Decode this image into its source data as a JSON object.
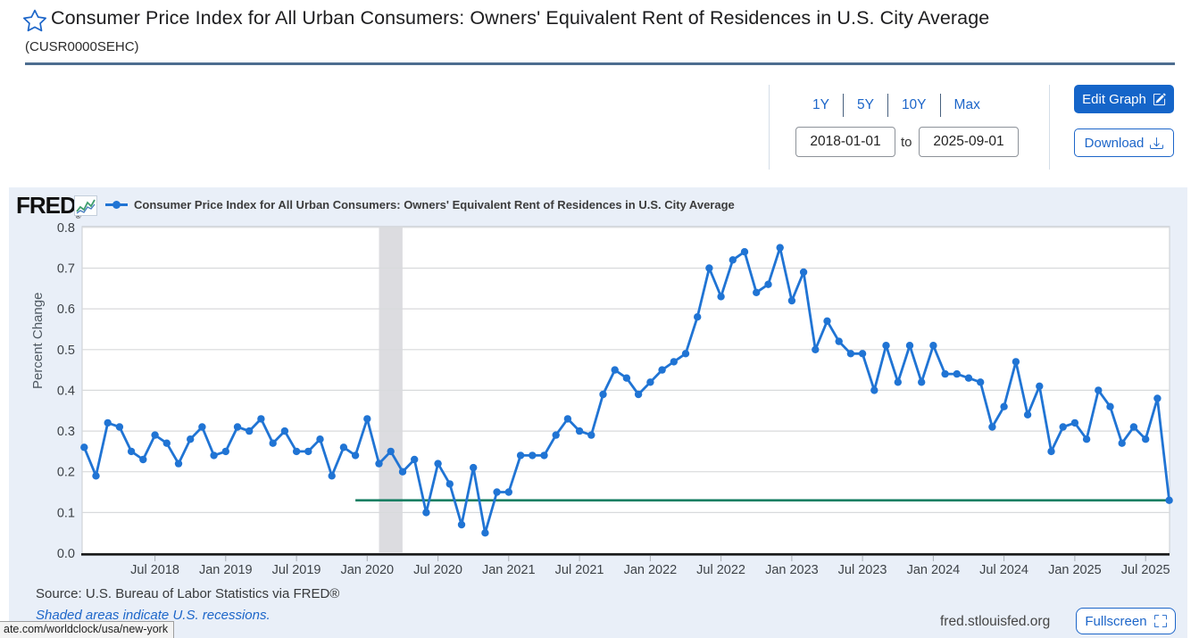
{
  "header": {
    "title": "Consumer Price Index for All Urban Consumers: Owners' Equivalent Rent of Residences in U.S. City Average",
    "series_id": "(CUSR0000SEHC)"
  },
  "controls": {
    "ranges": [
      "1Y",
      "5Y",
      "10Y",
      "Max"
    ],
    "date_start": "2018-01-01",
    "to_label": "to",
    "date_end": "2025-09-01",
    "edit_graph_label": "Edit Graph",
    "download_label": "Download"
  },
  "chart": {
    "logo_text": "FRED",
    "legend_label": "Consumer Price Index for All Urban Consumers: Owners' Equivalent Rent of Residences in U.S. City Average",
    "source_line": "Source: U.S. Bureau of Labor Statistics via FRED®",
    "recession_note": "Shaded areas indicate U.S. recessions.",
    "site_label": "fred.stlouisfed.org",
    "fullscreen_label": "Fullscreen"
  },
  "status_tooltip": "ate.com/worldclock/usa/new-york",
  "colors": {
    "accent_blue": "#1d66c9",
    "line_blue": "#2074d4",
    "green_line": "#177f63",
    "recession_band": "#dcdce0",
    "chart_bg": "#e9eff8",
    "divider": "#4d6d90"
  },
  "chart_data": {
    "type": "line",
    "title": "Consumer Price Index for All Urban Consumers: Owners' Equivalent Rent of Residences in U.S. City Average",
    "xlabel": "",
    "ylabel": "Percent Change",
    "ylim": [
      0.0,
      0.8
    ],
    "yticks": [
      "0.0",
      "0.1",
      "0.2",
      "0.3",
      "0.4",
      "0.5",
      "0.6",
      "0.7",
      "0.8"
    ],
    "x_tick_labels": [
      "Jul 2018",
      "Jan 2019",
      "Jul 2019",
      "Jan 2020",
      "Jul 2020",
      "Jan 2021",
      "Jul 2021",
      "Jan 2022",
      "Jul 2022",
      "Jan 2023",
      "Jul 2023",
      "Jan 2024",
      "Jul 2024",
      "Jan 2025",
      "Jul 2025"
    ],
    "frequency": "monthly",
    "start_month": "2018-01",
    "end_month": "2025-09",
    "values": [
      0.26,
      0.19,
      0.32,
      0.31,
      0.25,
      0.23,
      0.29,
      0.27,
      0.22,
      0.28,
      0.31,
      0.24,
      0.25,
      0.31,
      0.3,
      0.33,
      0.27,
      0.3,
      0.25,
      0.25,
      0.28,
      0.19,
      0.26,
      0.24,
      0.33,
      0.22,
      0.25,
      0.2,
      0.23,
      0.1,
      0.22,
      0.17,
      0.07,
      0.21,
      0.05,
      0.15,
      0.15,
      0.24,
      0.24,
      0.24,
      0.29,
      0.33,
      0.3,
      0.29,
      0.39,
      0.45,
      0.43,
      0.39,
      0.42,
      0.45,
      0.47,
      0.49,
      0.58,
      0.7,
      0.63,
      0.72,
      0.74,
      0.64,
      0.66,
      0.75,
      0.62,
      0.69,
      0.5,
      0.57,
      0.52,
      0.49,
      0.49,
      0.4,
      0.51,
      0.42,
      0.51,
      0.42,
      0.51,
      0.44,
      0.44,
      0.43,
      0.42,
      0.31,
      0.36,
      0.47,
      0.34,
      0.41,
      0.25,
      0.31,
      0.32,
      0.28,
      0.4,
      0.36,
      0.27,
      0.31,
      0.28,
      0.38,
      0.13
    ],
    "latest_value_line": {
      "value": 0.13,
      "from": "2019-12",
      "to": "2025-09"
    },
    "recession": {
      "from": "2020-02",
      "to": "2020-04"
    },
    "grid": true,
    "legend_position": "top-left"
  }
}
